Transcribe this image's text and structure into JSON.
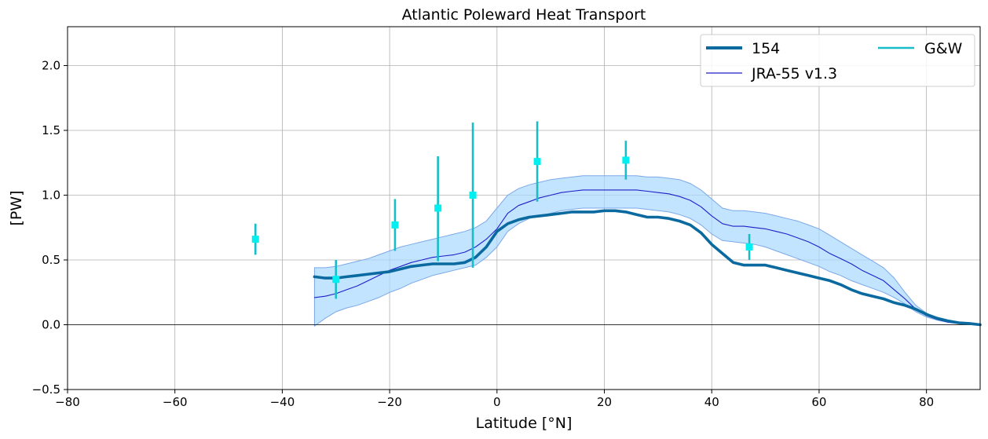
{
  "chart_data": {
    "type": "line",
    "title": "Atlantic Poleward Heat Transport",
    "xlabel": "Latitude [°N]",
    "ylabel": "[PW]",
    "xlim": [
      -80,
      90
    ],
    "ylim": [
      -0.5,
      2.3
    ],
    "xticks": [
      -80,
      -60,
      -40,
      -20,
      0,
      20,
      40,
      60,
      80
    ],
    "yticks": [
      -0.5,
      0.0,
      0.5,
      1.0,
      1.5,
      2.0
    ],
    "xtick_labels": [
      "−80",
      "−60",
      "−40",
      "−20",
      "0",
      "20",
      "40",
      "60",
      "80"
    ],
    "ytick_labels": [
      "−0.5",
      "0.0",
      "0.5",
      "1.0",
      "1.5",
      "2.0"
    ],
    "grid": true,
    "zero_line": true,
    "legend": {
      "position": "top-right",
      "columns": 2,
      "entries": [
        {
          "label": "154",
          "color": "#0a6aa0",
          "style": "thick-line"
        },
        {
          "label": "JRA-55 v1.3",
          "color": "#1f1fc8",
          "style": "thin-line"
        },
        {
          "label": "G&W",
          "color": "#17bec8",
          "style": "line"
        }
      ]
    },
    "series": [
      {
        "name": "154",
        "color": "#0a6aa0",
        "x": [
          -34,
          -32,
          -30,
          -28,
          -26,
          -24,
          -22,
          -20,
          -18,
          -16,
          -14,
          -12,
          -10,
          -8,
          -6,
          -4,
          -2,
          0,
          2,
          4,
          6,
          8,
          10,
          12,
          14,
          16,
          18,
          20,
          22,
          24,
          26,
          28,
          30,
          32,
          34,
          36,
          38,
          40,
          42,
          44,
          46,
          48,
          50,
          52,
          54,
          56,
          58,
          60,
          62,
          64,
          66,
          68,
          70,
          72,
          74,
          76,
          78,
          80,
          82,
          84,
          86,
          88,
          90
        ],
        "y": [
          0.37,
          0.36,
          0.36,
          0.37,
          0.38,
          0.39,
          0.4,
          0.41,
          0.43,
          0.45,
          0.46,
          0.47,
          0.47,
          0.47,
          0.48,
          0.52,
          0.6,
          0.72,
          0.78,
          0.81,
          0.83,
          0.84,
          0.85,
          0.86,
          0.87,
          0.87,
          0.87,
          0.88,
          0.88,
          0.87,
          0.85,
          0.83,
          0.83,
          0.82,
          0.8,
          0.77,
          0.71,
          0.62,
          0.55,
          0.48,
          0.46,
          0.46,
          0.46,
          0.44,
          0.42,
          0.4,
          0.38,
          0.36,
          0.34,
          0.31,
          0.27,
          0.24,
          0.22,
          0.2,
          0.17,
          0.15,
          0.12,
          0.08,
          0.05,
          0.03,
          0.015,
          0.01,
          0.0
        ]
      },
      {
        "name": "JRA-55 v1.3",
        "color": "#1f1fc8",
        "x": [
          -34,
          -32,
          -30,
          -28,
          -26,
          -24,
          -22,
          -20,
          -18,
          -16,
          -14,
          -12,
          -10,
          -8,
          -6,
          -4,
          -2,
          0,
          2,
          4,
          6,
          8,
          10,
          12,
          14,
          16,
          18,
          20,
          22,
          24,
          26,
          28,
          30,
          32,
          34,
          36,
          38,
          40,
          42,
          44,
          46,
          48,
          50,
          52,
          54,
          56,
          58,
          60,
          62,
          64,
          66,
          68,
          70,
          72,
          74,
          76,
          78,
          80,
          82,
          84,
          86,
          88,
          90
        ],
        "y": [
          0.21,
          0.22,
          0.24,
          0.27,
          0.3,
          0.34,
          0.38,
          0.42,
          0.45,
          0.48,
          0.5,
          0.52,
          0.53,
          0.54,
          0.56,
          0.6,
          0.66,
          0.74,
          0.86,
          0.92,
          0.95,
          0.98,
          1.0,
          1.02,
          1.03,
          1.04,
          1.04,
          1.04,
          1.04,
          1.04,
          1.04,
          1.03,
          1.02,
          1.01,
          0.99,
          0.96,
          0.91,
          0.84,
          0.78,
          0.76,
          0.76,
          0.75,
          0.74,
          0.72,
          0.7,
          0.67,
          0.64,
          0.6,
          0.55,
          0.51,
          0.47,
          0.42,
          0.38,
          0.34,
          0.27,
          0.2,
          0.12,
          0.07,
          0.04,
          0.02,
          0.01,
          0.005,
          0.0
        ]
      },
      {
        "name": "JRA-55 v1.3 range",
        "type": "band",
        "color": "#a8d8ff",
        "x": [
          -34,
          -32,
          -30,
          -28,
          -26,
          -24,
          -22,
          -20,
          -18,
          -16,
          -14,
          -12,
          -10,
          -8,
          -6,
          -4,
          -2,
          0,
          2,
          4,
          6,
          8,
          10,
          12,
          14,
          16,
          18,
          20,
          22,
          24,
          26,
          28,
          30,
          32,
          34,
          36,
          38,
          40,
          42,
          44,
          46,
          48,
          50,
          52,
          54,
          56,
          58,
          60,
          62,
          64,
          66,
          68,
          70,
          72,
          74,
          76,
          78,
          80,
          82,
          84,
          86,
          88,
          90
        ],
        "lower": [
          -0.01,
          0.05,
          0.1,
          0.13,
          0.15,
          0.18,
          0.21,
          0.25,
          0.28,
          0.32,
          0.35,
          0.38,
          0.4,
          0.42,
          0.44,
          0.46,
          0.52,
          0.6,
          0.72,
          0.78,
          0.82,
          0.84,
          0.86,
          0.88,
          0.89,
          0.9,
          0.9,
          0.9,
          0.9,
          0.9,
          0.9,
          0.89,
          0.88,
          0.87,
          0.85,
          0.82,
          0.77,
          0.7,
          0.65,
          0.64,
          0.63,
          0.62,
          0.6,
          0.57,
          0.54,
          0.51,
          0.48,
          0.45,
          0.41,
          0.38,
          0.34,
          0.31,
          0.28,
          0.25,
          0.21,
          0.16,
          0.1,
          0.06,
          0.035,
          0.018,
          0.008,
          0.003,
          0.0
        ],
        "upper": [
          0.44,
          0.44,
          0.45,
          0.47,
          0.49,
          0.51,
          0.54,
          0.57,
          0.6,
          0.62,
          0.64,
          0.66,
          0.68,
          0.7,
          0.72,
          0.75,
          0.8,
          0.9,
          1.0,
          1.05,
          1.08,
          1.1,
          1.12,
          1.13,
          1.14,
          1.15,
          1.15,
          1.15,
          1.15,
          1.15,
          1.15,
          1.14,
          1.14,
          1.13,
          1.12,
          1.09,
          1.04,
          0.97,
          0.9,
          0.88,
          0.88,
          0.87,
          0.86,
          0.84,
          0.82,
          0.8,
          0.77,
          0.74,
          0.69,
          0.64,
          0.59,
          0.54,
          0.49,
          0.44,
          0.36,
          0.25,
          0.15,
          0.09,
          0.05,
          0.025,
          0.012,
          0.005,
          0.0
        ]
      },
      {
        "name": "G&W",
        "type": "errorbar",
        "color": "#17bec8",
        "marker_color": "#00f0f0",
        "x": [
          -45,
          -30,
          -19,
          -11,
          -4.5,
          7.5,
          24,
          47
        ],
        "y": [
          0.66,
          0.35,
          0.77,
          0.9,
          1.0,
          1.26,
          1.27,
          0.6
        ],
        "err_low": [
          0.54,
          0.2,
          0.57,
          0.49,
          0.44,
          0.95,
          1.12,
          0.5
        ],
        "err_high": [
          0.78,
          0.5,
          0.97,
          1.3,
          1.56,
          1.57,
          1.42,
          0.7
        ]
      }
    ]
  }
}
